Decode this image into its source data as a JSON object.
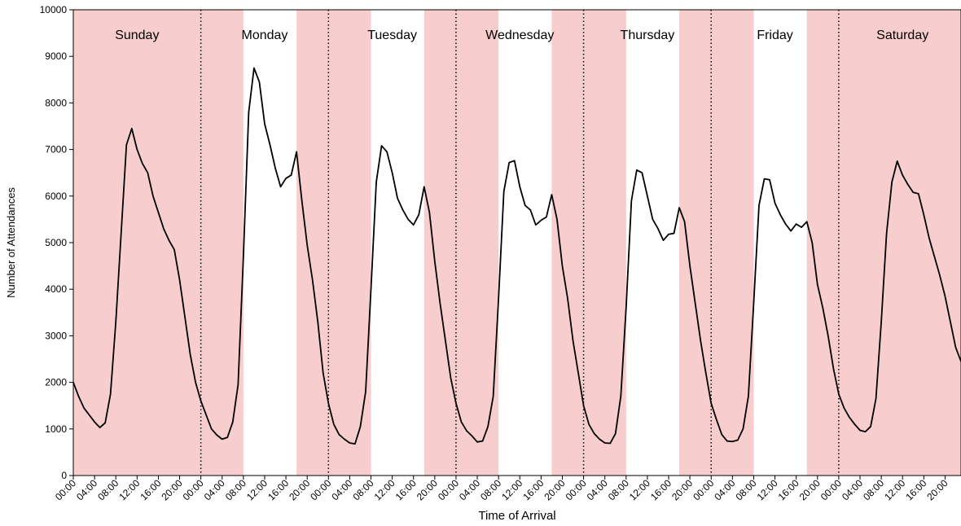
{
  "chart_data": {
    "type": "line",
    "x_label": "Time of Arrival",
    "y_label": "Number of Attendances",
    "color": "#000000",
    "shade_color": "#f7cdcd",
    "days": [
      "Sunday",
      "Monday",
      "Tuesday",
      "Wednesday",
      "Thursday",
      "Friday",
      "Saturday"
    ],
    "shaded_ranges": [
      [
        0,
        32
      ],
      [
        42,
        56
      ],
      [
        66,
        80
      ],
      [
        90,
        104
      ],
      [
        114,
        128
      ],
      [
        138,
        167
      ]
    ],
    "x": [
      0,
      1,
      2,
      3,
      4,
      5,
      6,
      7,
      8,
      9,
      10,
      11,
      12,
      13,
      14,
      15,
      16,
      17,
      18,
      19,
      20,
      21,
      22,
      23,
      24,
      25,
      26,
      27,
      28,
      29,
      30,
      31,
      32,
      33,
      34,
      35,
      36,
      37,
      38,
      39,
      40,
      41,
      42,
      43,
      44,
      45,
      46,
      47,
      48,
      49,
      50,
      51,
      52,
      53,
      54,
      55,
      56,
      57,
      58,
      59,
      60,
      61,
      62,
      63,
      64,
      65,
      66,
      67,
      68,
      69,
      70,
      71,
      72,
      73,
      74,
      75,
      76,
      77,
      78,
      79,
      80,
      81,
      82,
      83,
      84,
      85,
      86,
      87,
      88,
      89,
      90,
      91,
      92,
      93,
      94,
      95,
      96,
      97,
      98,
      99,
      100,
      101,
      102,
      103,
      104,
      105,
      106,
      107,
      108,
      109,
      110,
      111,
      112,
      113,
      114,
      115,
      116,
      117,
      118,
      119,
      120,
      121,
      122,
      123,
      124,
      125,
      126,
      127,
      128,
      129,
      130,
      131,
      132,
      133,
      134,
      135,
      136,
      137,
      138,
      139,
      140,
      141,
      142,
      143,
      144,
      145,
      146,
      147,
      148,
      149,
      150,
      151,
      152,
      153,
      154,
      155,
      156,
      157,
      158,
      159,
      160,
      161,
      162,
      163,
      164,
      165,
      166,
      167
    ],
    "values": [
      2000,
      1700,
      1450,
      1300,
      1150,
      1030,
      1130,
      1750,
      3300,
      5200,
      7100,
      7450,
      7000,
      6700,
      6500,
      6000,
      5650,
      5300,
      5050,
      4850,
      4200,
      3400,
      2600,
      2000,
      1600,
      1300,
      1000,
      870,
      780,
      820,
      1150,
      1950,
      4700,
      7800,
      8750,
      8450,
      7550,
      7100,
      6600,
      6200,
      6380,
      6450,
      6950,
      5900,
      4950,
      4200,
      3300,
      2200,
      1550,
      1100,
      880,
      780,
      700,
      680,
      1050,
      1800,
      4000,
      6300,
      7080,
      6950,
      6500,
      5950,
      5700,
      5500,
      5380,
      5600,
      6200,
      5650,
      4600,
      3700,
      2900,
      2100,
      1550,
      1150,
      960,
      850,
      720,
      740,
      1050,
      1700,
      3800,
      6100,
      6720,
      6760,
      6200,
      5800,
      5700,
      5380,
      5480,
      5550,
      6030,
      5500,
      4500,
      3800,
      2900,
      2200,
      1500,
      1100,
      900,
      780,
      700,
      690,
      900,
      1700,
      3600,
      5900,
      6560,
      6500,
      6000,
      5500,
      5300,
      5050,
      5180,
      5200,
      5750,
      5450,
      4500,
      3700,
      2900,
      2200,
      1550,
      1200,
      880,
      740,
      730,
      760,
      1000,
      1700,
      3700,
      5800,
      6370,
      6350,
      5850,
      5600,
      5400,
      5250,
      5400,
      5330,
      5450,
      5000,
      4100,
      3600,
      3000,
      2300,
      1750,
      1450,
      1250,
      1100,
      970,
      940,
      1050,
      1650,
      3300,
      5200,
      6300,
      6750,
      6450,
      6250,
      6080,
      6050,
      5600,
      5100,
      4700,
      4300,
      3850,
      3300,
      2750,
      2450
    ],
    "xlim": [
      0,
      167
    ],
    "ylim": [
      0,
      10000
    ],
    "yticks": [
      0,
      1000,
      2000,
      3000,
      4000,
      5000,
      6000,
      7000,
      8000,
      9000,
      10000
    ],
    "xticks": [
      {
        "value": 0,
        "label": "00:00"
      },
      {
        "value": 4,
        "label": "04:00"
      },
      {
        "value": 8,
        "label": "08:00"
      },
      {
        "value": 12,
        "label": "12:00"
      },
      {
        "value": 16,
        "label": "16:00"
      },
      {
        "value": 20,
        "label": "20:00"
      },
      {
        "value": 24,
        "label": "00:00"
      },
      {
        "value": 28,
        "label": "04:00"
      },
      {
        "value": 32,
        "label": "08:00"
      },
      {
        "value": 36,
        "label": "12:00"
      },
      {
        "value": 40,
        "label": "16:00"
      },
      {
        "value": 44,
        "label": "20:00"
      },
      {
        "value": 48,
        "label": "00:00"
      },
      {
        "value": 52,
        "label": "04:00"
      },
      {
        "value": 56,
        "label": "08:00"
      },
      {
        "value": 60,
        "label": "12:00"
      },
      {
        "value": 64,
        "label": "16:00"
      },
      {
        "value": 68,
        "label": "20:00"
      },
      {
        "value": 72,
        "label": "00:00"
      },
      {
        "value": 76,
        "label": "04:00"
      },
      {
        "value": 80,
        "label": "08:00"
      },
      {
        "value": 84,
        "label": "12:00"
      },
      {
        "value": 88,
        "label": "16:00"
      },
      {
        "value": 92,
        "label": "20:00"
      },
      {
        "value": 96,
        "label": "00:00"
      },
      {
        "value": 100,
        "label": "04:00"
      },
      {
        "value": 104,
        "label": "08:00"
      },
      {
        "value": 108,
        "label": "12:00"
      },
      {
        "value": 112,
        "label": "16:00"
      },
      {
        "value": 116,
        "label": "20:00"
      },
      {
        "value": 120,
        "label": "00:00"
      },
      {
        "value": 124,
        "label": "04:00"
      },
      {
        "value": 128,
        "label": "08:00"
      },
      {
        "value": 132,
        "label": "12:00"
      },
      {
        "value": 136,
        "label": "16:00"
      },
      {
        "value": 140,
        "label": "20:00"
      },
      {
        "value": 144,
        "label": "00:00"
      },
      {
        "value": 148,
        "label": "04:00"
      },
      {
        "value": 152,
        "label": "08:00"
      },
      {
        "value": 156,
        "label": "12:00"
      },
      {
        "value": 160,
        "label": "16:00"
      },
      {
        "value": 164,
        "label": "20:00"
      }
    ]
  }
}
